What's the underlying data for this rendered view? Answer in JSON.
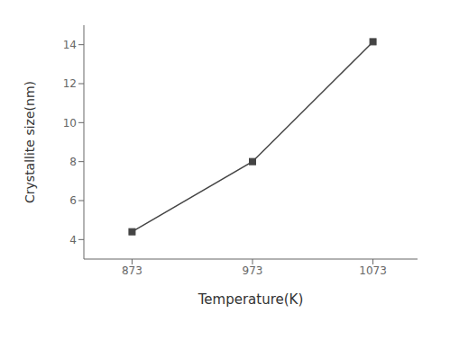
{
  "chart_data": {
    "type": "line",
    "x": [
      873,
      973,
      1073
    ],
    "values": [
      4.4,
      8.0,
      14.15
    ],
    "xlabel": "Temperature(K)",
    "ylabel": "Crystallite size(nm)",
    "xlim": [
      833,
      1110
    ],
    "ylim": [
      3.0,
      15.0
    ],
    "xticks": [
      873,
      973,
      1073
    ],
    "yticks": [
      4,
      6,
      8,
      10,
      12,
      14
    ],
    "color": "#444444",
    "marker": "square",
    "grid": false
  }
}
